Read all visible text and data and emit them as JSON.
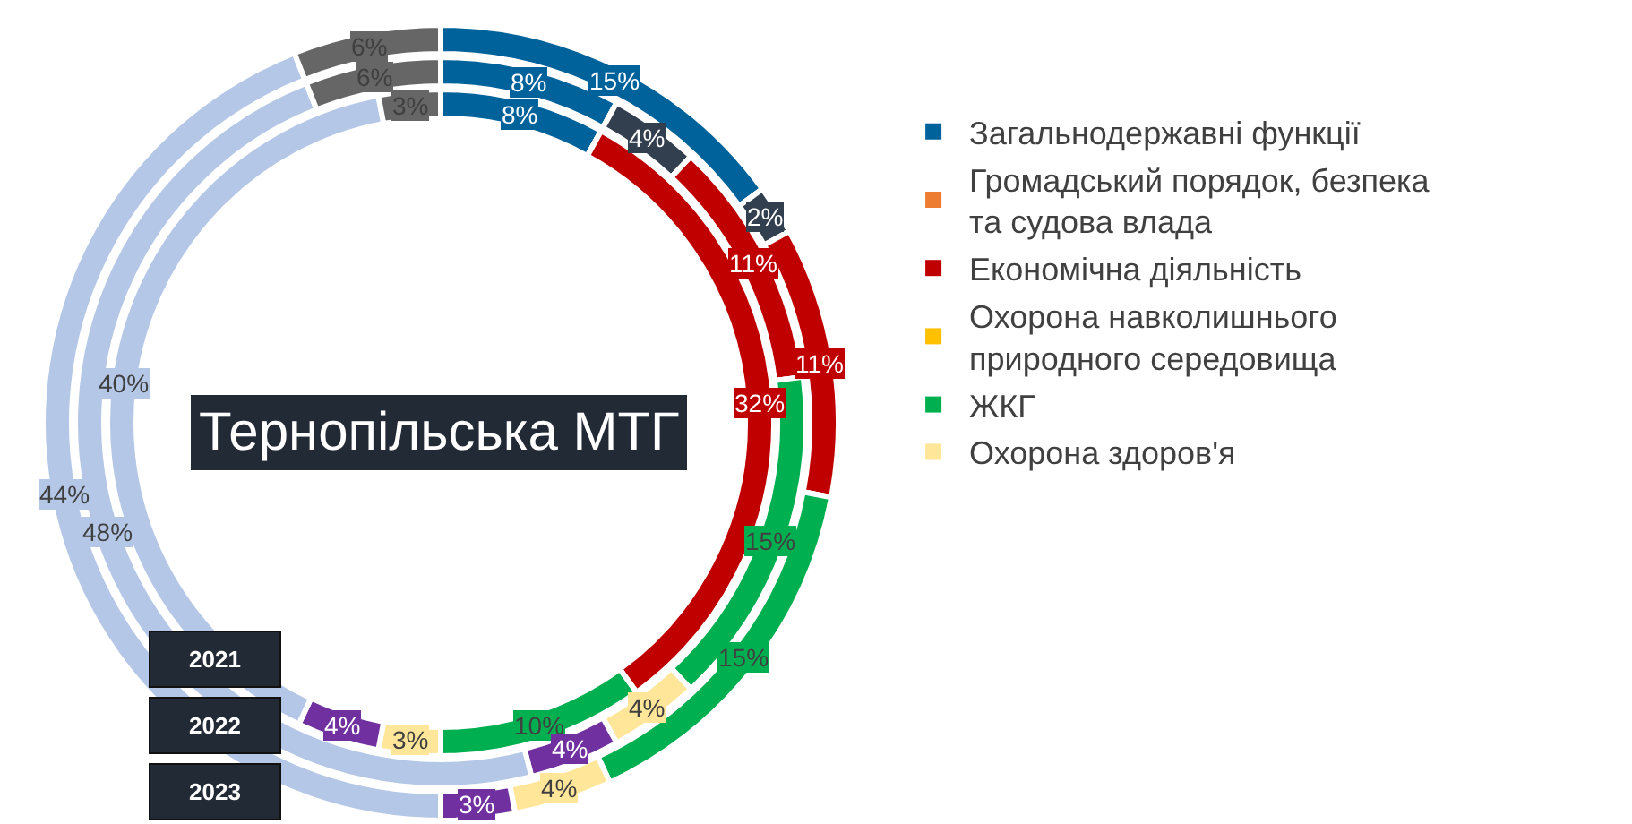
{
  "chart_data": {
    "type": "donut",
    "title": "Тернопільська МТГ",
    "categories": [
      "Загальнодержавні функції",
      "Громадський порядок, безпека та судова влада",
      null,
      "Економічна діяльність",
      "Охорона навколишнього природного середовища",
      "ЖКГ",
      "Охорона здоров'я",
      null,
      null,
      null
    ],
    "colors": [
      "#00629b",
      "#ed7d31",
      "#323f4f",
      "#c00000",
      "#ffc000",
      "#00b050",
      "#ffe699",
      "#7030a0",
      "#b4c7e7",
      "#666666"
    ],
    "series": [
      {
        "name": "2021",
        "values": [
          8,
          0,
          0,
          32,
          0,
          10,
          3,
          4,
          40,
          3
        ],
        "value_labels": [
          "8%",
          null,
          null,
          "32%",
          null,
          "10%",
          "3%",
          "4%",
          "40%",
          "3%"
        ]
      },
      {
        "name": "2022",
        "values": [
          8,
          0,
          4,
          11,
          0,
          15,
          4,
          4,
          48,
          6
        ],
        "value_labels": [
          "8%",
          null,
          "4%",
          "11%",
          null,
          "15%",
          "4%",
          "4%",
          "48%",
          "6%"
        ]
      },
      {
        "name": "2023",
        "values": [
          15,
          0,
          2,
          11,
          0,
          15,
          4,
          3,
          44,
          6
        ],
        "value_labels": [
          "15%",
          null,
          "2%",
          "11%",
          null,
          "15%",
          "4%",
          "3%",
          "44%",
          "6%"
        ]
      }
    ],
    "legend": "right"
  }
}
